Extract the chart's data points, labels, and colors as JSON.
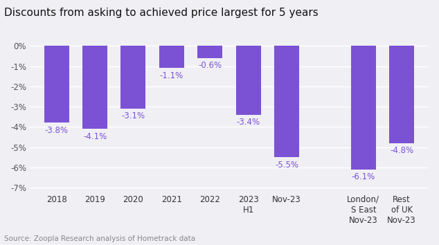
{
  "title": "Discounts from asking to achieved price largest for 5 years",
  "categories": [
    "2018",
    "2019",
    "2020",
    "2021",
    "2022",
    "2023\nH1",
    "Nov-23",
    "",
    "London/\nS East\nNov-23",
    "Rest\nof UK\nNov-23"
  ],
  "values": [
    -3.8,
    -4.1,
    -3.1,
    -1.1,
    -0.6,
    -3.4,
    -5.5,
    null,
    -6.1,
    -4.8
  ],
  "labels": [
    "-3.8%",
    "-4.1%",
    "-3.1%",
    "-1.1%",
    "-0.6%",
    "-3.4%",
    "-5.5%",
    "",
    "-6.1%",
    "-4.8%"
  ],
  "bar_color": "#7B52D3",
  "label_color": "#7B52D3",
  "ylim": [
    -7.2,
    0.3
  ],
  "yticks": [
    0,
    -1,
    -2,
    -3,
    -4,
    -5,
    -6,
    -7
  ],
  "ytick_labels": [
    "0%",
    "-1%",
    "-2%",
    "-3%",
    "-4%",
    "-5%",
    "-6%",
    "-7%"
  ],
  "background_color": "#f0eff4",
  "plot_bg_color": "#f0eff4",
  "source_text": "Source: Zoopla Research analysis of Hometrack data",
  "title_fontsize": 11,
  "label_fontsize": 8.5,
  "tick_fontsize": 8.5,
  "source_fontsize": 7.5
}
